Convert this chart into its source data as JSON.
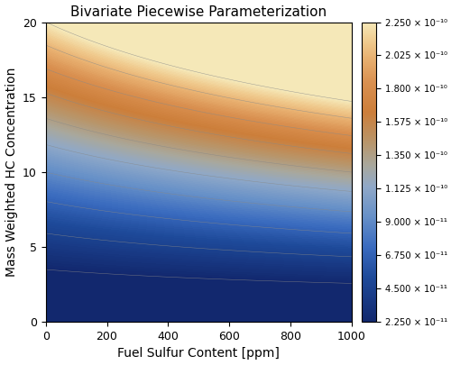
{
  "title": "Bivariate Piecewise Parameterization",
  "xlabel": "Fuel Sulfur Content [ppm]",
  "ylabel": "Mass Weighted HC Concentration",
  "xlim": [
    0,
    1000
  ],
  "ylim": [
    0,
    20
  ],
  "xticks": [
    0,
    200,
    400,
    600,
    800,
    1000
  ],
  "yticks": [
    0,
    5,
    10,
    15,
    20
  ],
  "colorbar_ticks": [
    2.25e-11,
    4.5e-11,
    6.75e-11,
    9e-11,
    1.125e-10,
    1.35e-10,
    1.575e-10,
    1.8e-10,
    2.025e-10,
    2.25e-10
  ],
  "colorbar_labels": [
    "2.250 × 10⁻¹¹",
    "4.500 × 10⁻¹¹",
    "6.750 × 10⁻¹¹",
    "9.000 × 10⁻¹¹",
    "1.125 × 10⁻¹⁰",
    "1.350 × 10⁻¹⁰",
    "1.575 × 10⁻¹⁰",
    "1.800 × 10⁻¹⁰",
    "2.025 × 10⁻¹⁰",
    "2.250 × 10⁻¹⁰"
  ],
  "vmin": 2.25e-11,
  "vmax": 2.25e-10,
  "background_color": "#ffffff",
  "title_fontsize": 11,
  "label_fontsize": 10,
  "tick_fontsize": 9,
  "colormap_colors": [
    [
      0.0,
      "#12286e"
    ],
    [
      0.15,
      "#1e4a9a"
    ],
    [
      0.25,
      "#3a6bbf"
    ],
    [
      0.35,
      "#6690c8"
    ],
    [
      0.45,
      "#8fa8c8"
    ],
    [
      0.52,
      "#a8a89e"
    ],
    [
      0.6,
      "#b8956a"
    ],
    [
      0.7,
      "#cc7e3a"
    ],
    [
      0.8,
      "#d99050"
    ],
    [
      0.88,
      "#e8b070"
    ],
    [
      0.94,
      "#f0cc90"
    ],
    [
      1.0,
      "#f5e8b8"
    ]
  ]
}
